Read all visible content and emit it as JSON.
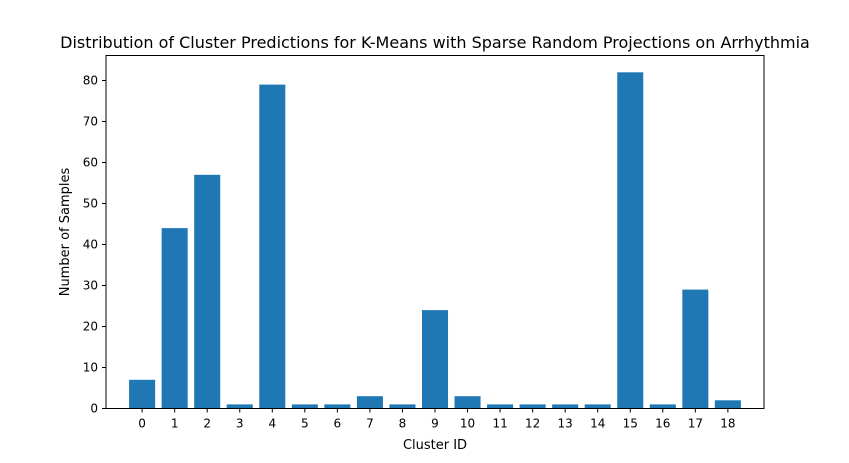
{
  "chart_data": {
    "type": "bar",
    "title": "Distribution of Cluster Predictions for K-Means with Sparse Random Projections on Arrhythmia",
    "xlabel": "Cluster ID",
    "ylabel": "Number of Samples",
    "categories": [
      "0",
      "1",
      "2",
      "3",
      "4",
      "5",
      "6",
      "7",
      "8",
      "9",
      "10",
      "11",
      "12",
      "13",
      "14",
      "15",
      "16",
      "17",
      "18"
    ],
    "values": [
      7,
      44,
      57,
      1,
      79,
      1,
      1,
      3,
      1,
      24,
      3,
      1,
      1,
      1,
      1,
      82,
      1,
      29,
      2
    ],
    "ylim": [
      0,
      86.1
    ],
    "yticks": [
      0,
      10,
      20,
      30,
      40,
      50,
      60,
      70,
      80
    ],
    "grid": false,
    "bar_color": "#1f77b4"
  }
}
